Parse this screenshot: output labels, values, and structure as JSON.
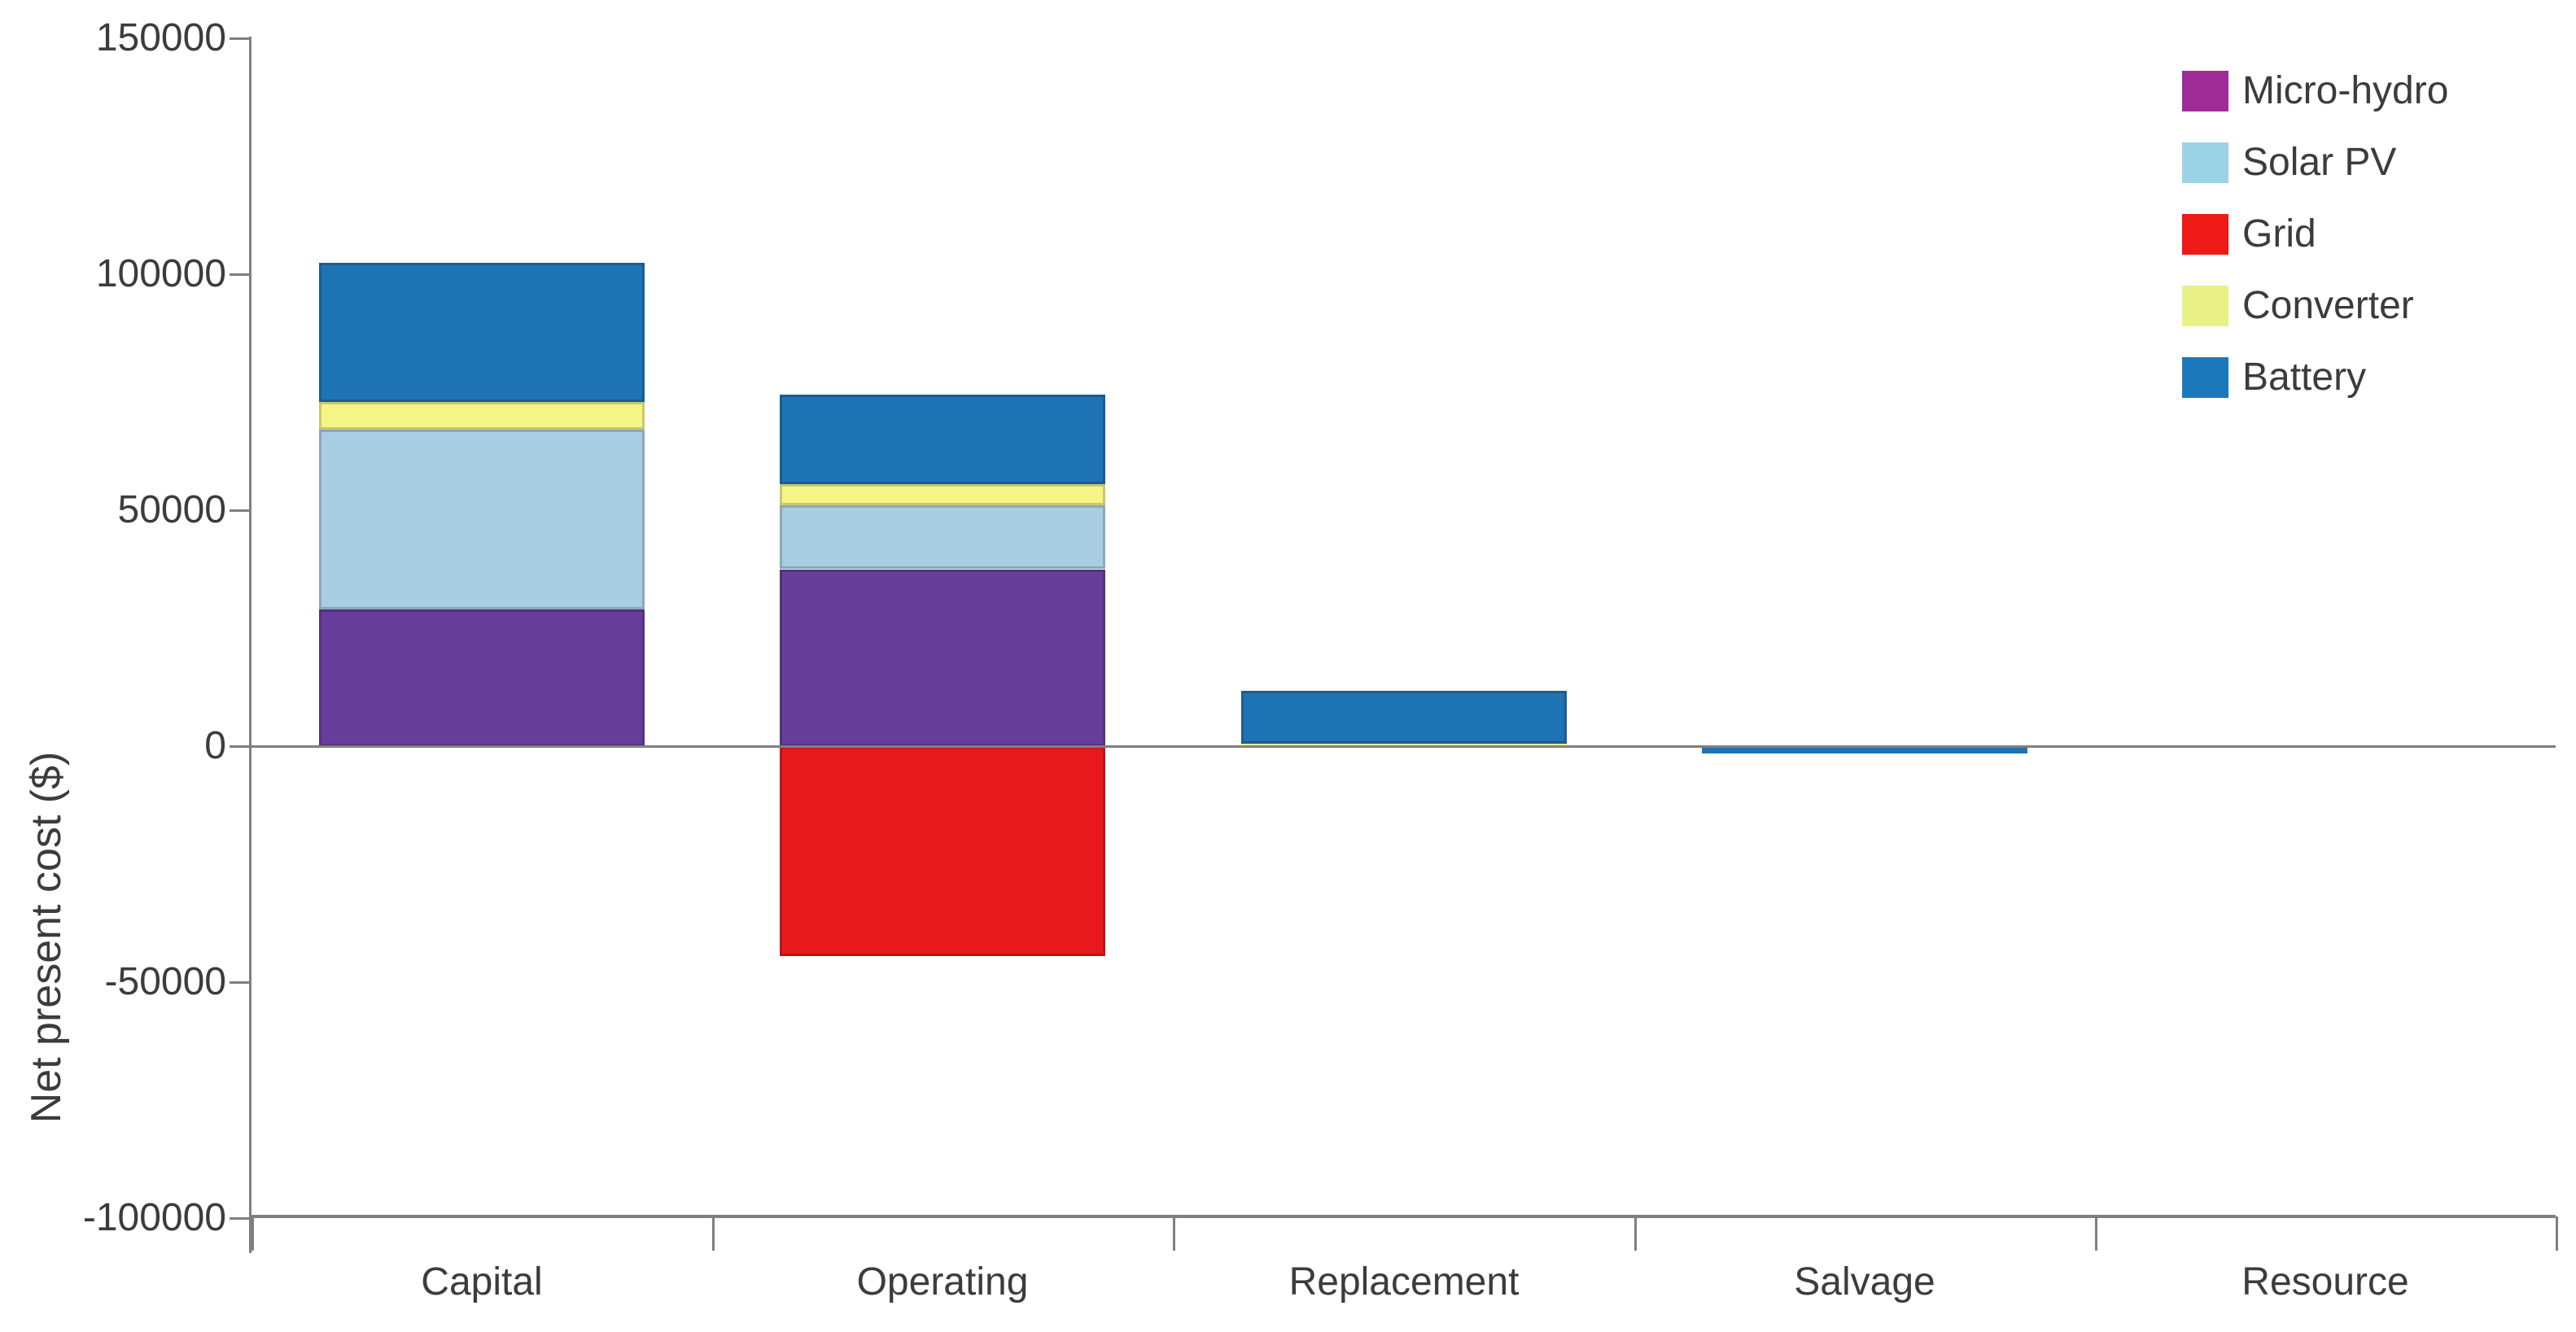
{
  "chart_data": {
    "type": "stacked-bar",
    "title": "",
    "ylabel": "Net present cost ($)",
    "xlabel": "",
    "categories": [
      "Capital",
      "Operating",
      "Replacement",
      "Salvage",
      "Resource"
    ],
    "series": [
      {
        "name": "Micro-hydro",
        "color": "#673e9c",
        "legend_color": "#9e2d98",
        "values": [
          29000,
          37500,
          0,
          0,
          0
        ]
      },
      {
        "name": "Solar PV",
        "color": "#a9cde3",
        "legend_color": "#9bd3e6",
        "values": [
          38000,
          13500,
          0,
          0,
          0
        ]
      },
      {
        "name": "Grid",
        "color": "#e7191d",
        "legend_color": "#ee1a16",
        "values": [
          0,
          -44500,
          0,
          0,
          0
        ]
      },
      {
        "name": "Converter",
        "color": "#f5f586",
        "legend_color": "#e9f186",
        "values": [
          6000,
          4500,
          500,
          0,
          0
        ]
      },
      {
        "name": "Battery",
        "color": "#1e73b4",
        "legend_color": "#1b78bb",
        "values": [
          29500,
          19000,
          11200,
          -1500,
          0
        ]
      }
    ],
    "category_totals_positive": [
      102500,
      74500,
      11700,
      0,
      0
    ],
    "category_totals_negative": [
      0,
      -44500,
      0,
      -1500,
      0
    ],
    "ylim": [
      -100000,
      150000
    ],
    "ytick_values": [
      150000,
      100000,
      50000,
      0,
      -50000,
      -100000
    ],
    "ytick_labels": [
      "150000",
      "100000",
      "50000",
      "0",
      "-50000",
      "-100000"
    ],
    "grid": false,
    "legend_position": "top-right",
    "colors": {
      "axis": "#7f7f7f",
      "text": "#3c3c3c",
      "background": "#ffffff"
    }
  }
}
